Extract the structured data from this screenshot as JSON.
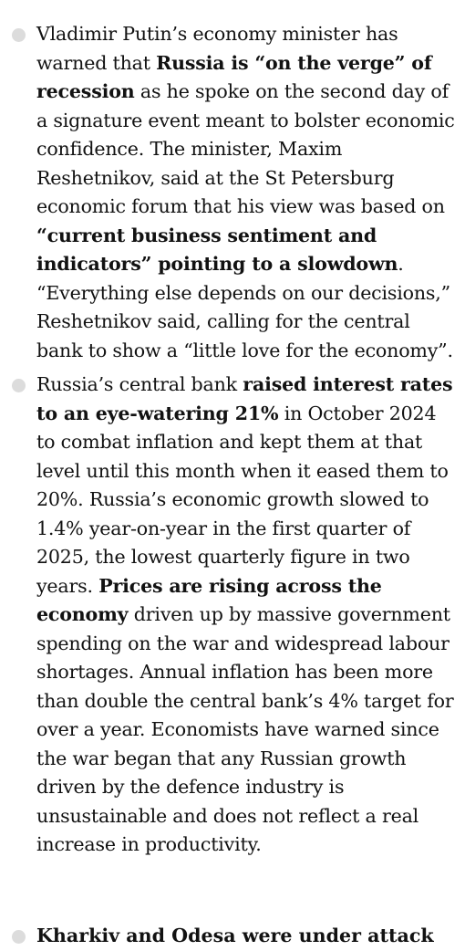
{
  "bullets": [
    {
      "segments": [
        {
          "text": "Vladimir Putin’s economy minister has warned that ",
          "bold": false
        },
        {
          "text": "Russia is “on the verge” of recession",
          "bold": true
        },
        {
          "text": " as he spoke on the second day of a signature event meant to bolster economic confidence. The minister, Maxim Reshetnikov, said at the St Petersburg economic forum that his view was based on ",
          "bold": false
        },
        {
          "text": "“current business sentiment and indicators” pointing to a slowdown",
          "bold": true
        },
        {
          "text": ". “Everything else depends on our decisions,” Reshetnikov said, calling for the central bank to show a “little love for the economy”.",
          "bold": false
        }
      ]
    },
    {
      "segments": [
        {
          "text": "Russia’s central bank ",
          "bold": false
        },
        {
          "text": "raised interest rates to an eye-watering 21%",
          "bold": true
        },
        {
          "text": " in October 2024 to combat inflation and kept them at that level until this month when it eased them to 20%. Russia’s economic growth slowed to 1.4% year-on-year in the first quarter of 2025, the lowest quarterly figure in two years. ",
          "bold": false
        },
        {
          "text": "Prices are rising across the economy",
          "bold": true
        },
        {
          "text": " driven up by massive government spending on the war and widespread labour shortages. Annual inflation has been more than double the central bank’s 4% target for over a year. Economists have warned since the war began that any Russian growth driven by the defence industry is unsustainable and does not reflect a real increase in productivity.",
          "bold": false
        }
      ]
    }
  ],
  "cutoff_text": "Kharkiv and Odesa were under attack"
}
